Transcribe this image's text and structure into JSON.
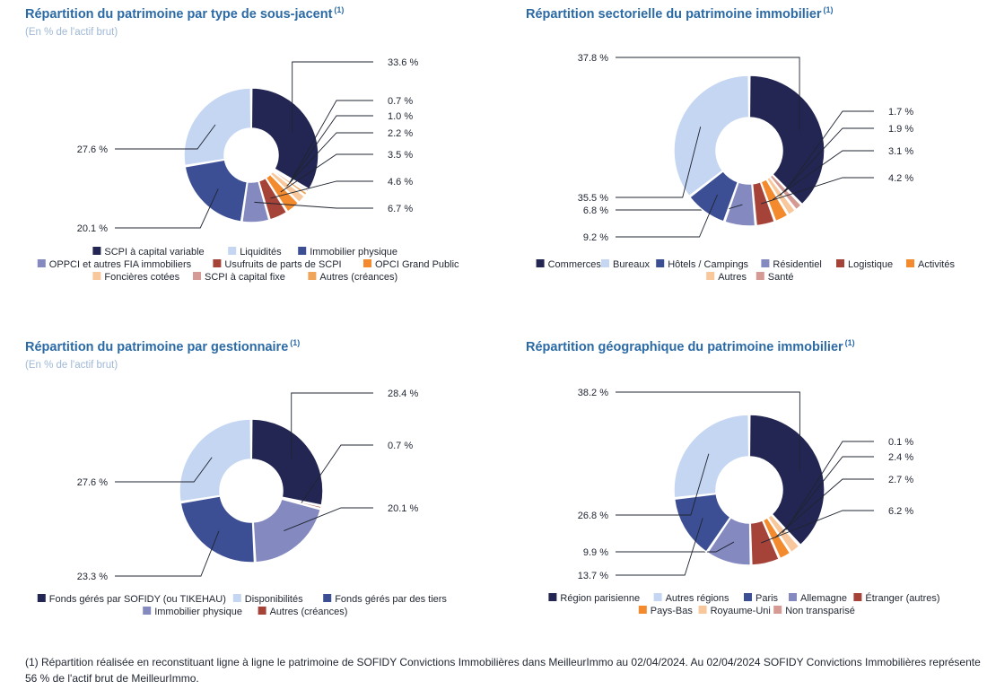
{
  "colors": {
    "navy": "#232652",
    "lightblue": "#c5d6f2",
    "medblue": "#3d4f94",
    "slate": "#8489c0",
    "brick": "#a64339",
    "orange": "#f38a2d",
    "peach": "#f8c89c",
    "rose": "#d49a93",
    "amber": "#f0a45a",
    "title": "#2b6aa5",
    "subtitle": "#9fb8d6"
  },
  "footnote": {
    "text": "(1) Répartition réalisée en reconstituant ligne à ligne le patrimoine de SOFIDY Convictions Immobilières dans MeilleurImmo au 02/04/2024. Au 02/04/2024 SOFIDY Convictions Immobilières représente 56 % de l'actif brut de MeilleurImmo."
  },
  "chart_data": [
    {
      "type": "pie",
      "donut": true,
      "title": "Répartition du patrimoine par type de sous-jacent",
      "title_note": "(1)",
      "subtitle": "(En % de l'actif brut)",
      "legend_placement": "bottom",
      "slices": [
        {
          "label": "SCPI à capital variable",
          "value": 33.6,
          "value_label": "33.6 %",
          "color": "#232652"
        },
        {
          "label": "SCPI à capital fixe",
          "value": 0.7,
          "value_label": "0.7 %",
          "color": "#d49a93"
        },
        {
          "label": "Autres (créances)",
          "value": 1.0,
          "value_label": "1.0 %",
          "color": "#f0a45a"
        },
        {
          "label": "Foncières cotées",
          "value": 2.2,
          "value_label": "2.2 %",
          "color": "#f8c89c"
        },
        {
          "label": "OPCI Grand Public",
          "value": 3.5,
          "value_label": "3.5 %",
          "color": "#f38a2d"
        },
        {
          "label": "Usufruits de parts de SCPI",
          "value": 4.6,
          "value_label": "4.6 %",
          "color": "#a64339"
        },
        {
          "label": "OPPCI et autres FIA immobiliers",
          "value": 6.7,
          "value_label": "6.7 %",
          "color": "#8489c0"
        },
        {
          "label": "Immobilier physique",
          "value": 20.1,
          "value_label": "20.1 %",
          "color": "#3d4f94"
        },
        {
          "label": "Liquidités",
          "value": 27.6,
          "value_label": "27.6 %",
          "color": "#c5d6f2"
        }
      ],
      "legend": [
        [
          "SCPI à capital variable",
          "Liquidités",
          "Immobilier physique"
        ],
        [
          "OPPCI et autres FIA immobiliers",
          "Usufruits de parts de SCPI",
          "OPCI Grand Public"
        ],
        [
          "Foncières cotées",
          "SCPI à capital fixe",
          "Autres (créances)"
        ]
      ]
    },
    {
      "type": "pie",
      "donut": true,
      "title": "Répartition sectorielle du patrimoine immobilier",
      "title_note": "(1)",
      "subtitle": "",
      "legend_placement": "bottom",
      "slices": [
        {
          "label": "Commerces",
          "value": 37.8,
          "value_label": "37.8 %",
          "color": "#232652"
        },
        {
          "label": "Santé",
          "value": 1.7,
          "value_label": "1.7 %",
          "color": "#d49a93"
        },
        {
          "label": "Autres",
          "value": 1.9,
          "value_label": "1.9 %",
          "color": "#f8c89c"
        },
        {
          "label": "Activités",
          "value": 3.1,
          "value_label": "3.1 %",
          "color": "#f38a2d"
        },
        {
          "label": "Logistique",
          "value": 4.2,
          "value_label": "4.2 %",
          "color": "#a64339"
        },
        {
          "label": "Résidentiel",
          "value": 6.8,
          "value_label": "6.8 %",
          "color": "#8489c0"
        },
        {
          "label": "Hôtels / Campings",
          "value": 9.2,
          "value_label": "9.2 %",
          "color": "#3d4f94"
        },
        {
          "label": "Bureaux",
          "value": 35.5,
          "value_label": "35.5 %",
          "color": "#c5d6f2"
        }
      ],
      "legend": [
        [
          "Commerces",
          "Bureaux",
          "Hôtels / Campings",
          "Résidentiel",
          "Logistique",
          "Activités"
        ],
        [
          "Autres",
          "Santé"
        ]
      ]
    },
    {
      "type": "pie",
      "donut": true,
      "title": "Répartition du patrimoine par gestionnaire",
      "title_note": "(1)",
      "subtitle": "(En % de l'actif brut)",
      "legend_placement": "bottom",
      "slices": [
        {
          "label": "Fonds gérés par SOFIDY (ou TIKEHAU)",
          "value": 28.4,
          "value_label": "28.4 %",
          "color": "#232652"
        },
        {
          "label": "Autres (créances)",
          "value": 0.7,
          "value_label": "0.7 %",
          "color": "#a64339"
        },
        {
          "label": "Immobilier physique",
          "value": 20.1,
          "value_label": "20.1 %",
          "color": "#8489c0"
        },
        {
          "label": "Fonds gérés par des tiers",
          "value": 23.3,
          "value_label": "23.3 %",
          "color": "#3d4f94"
        },
        {
          "label": "Disponibilités",
          "value": 27.6,
          "value_label": "27.6 %",
          "color": "#c5d6f2"
        }
      ],
      "legend": [
        [
          "Fonds gérés par SOFIDY (ou TIKEHAU)",
          "Disponibilités",
          "Fonds gérés par des tiers"
        ],
        [
          "Immobilier physique",
          "Autres (créances)"
        ]
      ]
    },
    {
      "type": "pie",
      "donut": true,
      "title": "Répartition géographique du patrimoine immobilier",
      "title_note": "(1)",
      "subtitle": "",
      "legend_placement": "bottom",
      "slices": [
        {
          "label": "Région parisienne",
          "value": 38.2,
          "value_label": "38.2 %",
          "color": "#232652"
        },
        {
          "label": "Non transparisé",
          "value": 0.1,
          "value_label": "0.1 %",
          "color": "#d49a93"
        },
        {
          "label": "Royaume-Uni",
          "value": 2.4,
          "value_label": "2.4 %",
          "color": "#f8c89c"
        },
        {
          "label": "Pays-Bas",
          "value": 2.7,
          "value_label": "2.7 %",
          "color": "#f38a2d"
        },
        {
          "label": "Étranger (autres)",
          "value": 6.2,
          "value_label": "6.2 %",
          "color": "#a64339"
        },
        {
          "label": "Allemagne",
          "value": 9.9,
          "value_label": "9.9 %",
          "color": "#8489c0"
        },
        {
          "label": "Paris",
          "value": 13.7,
          "value_label": "13.7 %",
          "color": "#3d4f94"
        },
        {
          "label": "Autres régions",
          "value": 26.8,
          "value_label": "26.8 %",
          "color": "#c5d6f2"
        }
      ],
      "legend": [
        [
          "Région parisienne",
          "Autres régions",
          "Paris",
          "Allemagne",
          "Étranger (autres)"
        ],
        [
          "Pays-Bas",
          "Royaume-Uni",
          "Non transparisé"
        ]
      ]
    }
  ]
}
